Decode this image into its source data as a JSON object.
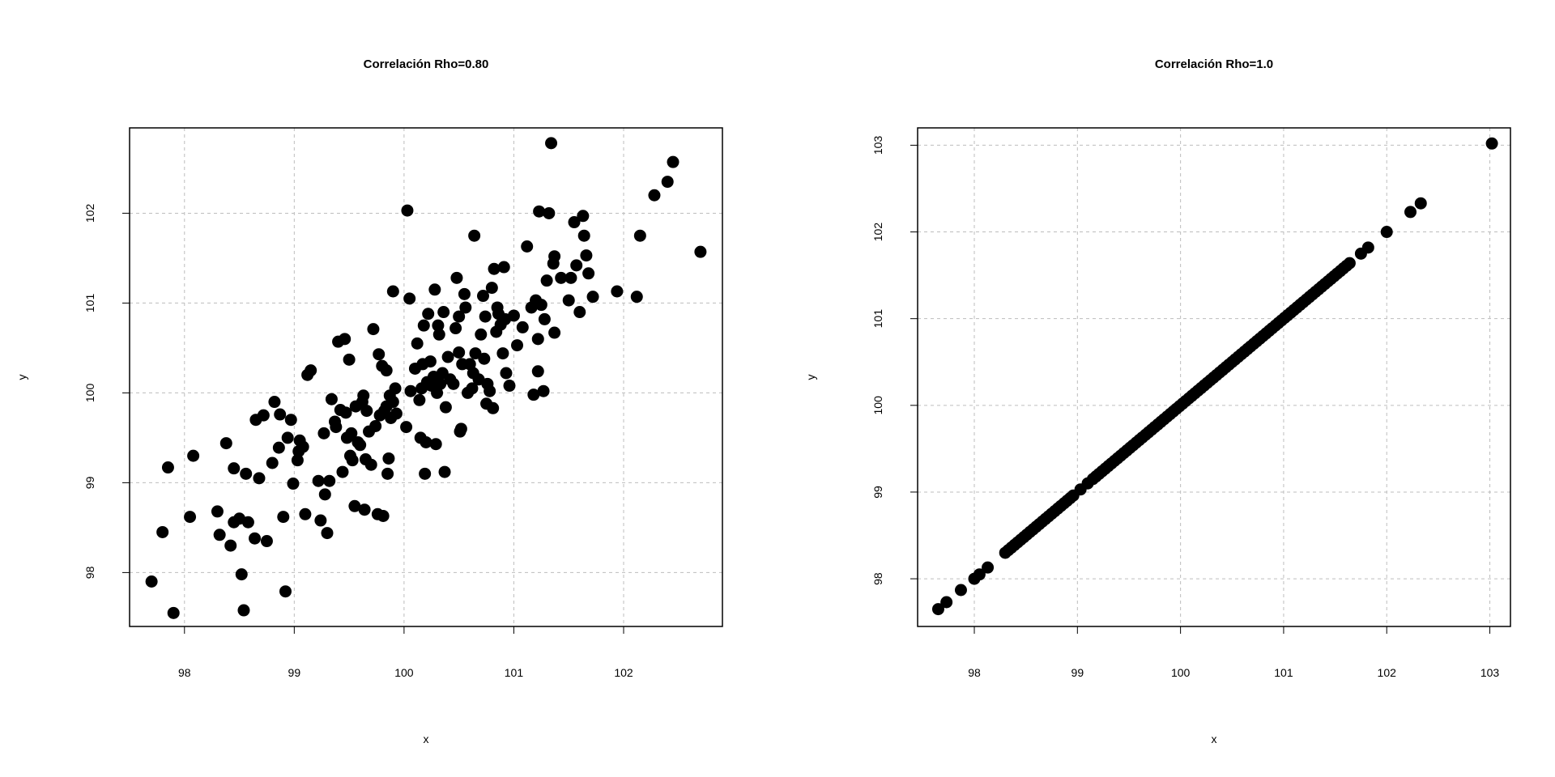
{
  "chart_data": [
    {
      "type": "scatter",
      "title": "Correlación Rho=0.80",
      "xlabel": "x",
      "ylabel": "y",
      "xlim": [
        97.5,
        102.9
      ],
      "ylim": [
        97.4,
        102.95
      ],
      "xticks": [
        98,
        99,
        100,
        101,
        102
      ],
      "yticks": [
        98,
        99,
        100,
        101,
        102
      ],
      "grid": true,
      "marker_color": "#000000",
      "points": [
        [
          97.7,
          97.9
        ],
        [
          97.8,
          98.45
        ],
        [
          97.9,
          97.55
        ],
        [
          97.85,
          99.17
        ],
        [
          98.05,
          98.62
        ],
        [
          98.08,
          99.3
        ],
        [
          98.3,
          98.68
        ],
        [
          98.32,
          98.42
        ],
        [
          98.38,
          99.44
        ],
        [
          98.42,
          98.3
        ],
        [
          98.45,
          99.16
        ],
        [
          98.45,
          98.56
        ],
        [
          98.5,
          98.6
        ],
        [
          98.52,
          97.98
        ],
        [
          98.54,
          97.58
        ],
        [
          98.56,
          99.1
        ],
        [
          98.58,
          98.56
        ],
        [
          98.64,
          98.38
        ],
        [
          98.65,
          99.7
        ],
        [
          98.68,
          99.05
        ],
        [
          98.72,
          99.75
        ],
        [
          98.75,
          98.35
        ],
        [
          98.8,
          99.22
        ],
        [
          98.82,
          99.9
        ],
        [
          98.86,
          99.39
        ],
        [
          98.87,
          99.76
        ],
        [
          98.9,
          98.62
        ],
        [
          98.92,
          97.79
        ],
        [
          98.94,
          99.5
        ],
        [
          98.97,
          99.7
        ],
        [
          98.99,
          98.99
        ],
        [
          99.03,
          99.25
        ],
        [
          99.04,
          99.35
        ],
        [
          99.05,
          99.47
        ],
        [
          99.08,
          99.4
        ],
        [
          99.1,
          98.65
        ],
        [
          99.12,
          100.2
        ],
        [
          99.15,
          100.25
        ],
        [
          99.22,
          99.02
        ],
        [
          99.24,
          98.58
        ],
        [
          99.27,
          99.55
        ],
        [
          99.28,
          98.87
        ],
        [
          99.3,
          98.44
        ],
        [
          99.32,
          99.02
        ],
        [
          99.34,
          99.93
        ],
        [
          99.37,
          99.68
        ],
        [
          99.38,
          99.62
        ],
        [
          99.4,
          100.57
        ],
        [
          99.42,
          99.81
        ],
        [
          99.44,
          99.12
        ],
        [
          99.46,
          100.6
        ],
        [
          99.47,
          99.78
        ],
        [
          99.48,
          99.5
        ],
        [
          99.5,
          100.37
        ],
        [
          99.51,
          99.3
        ],
        [
          99.52,
          99.55
        ],
        [
          99.53,
          99.25
        ],
        [
          99.55,
          98.74
        ],
        [
          99.56,
          99.85
        ],
        [
          99.58,
          99.45
        ],
        [
          99.6,
          99.42
        ],
        [
          99.62,
          99.9
        ],
        [
          99.63,
          99.97
        ],
        [
          99.64,
          98.7
        ],
        [
          99.65,
          99.26
        ],
        [
          99.66,
          99.8
        ],
        [
          99.68,
          99.57
        ],
        [
          99.7,
          99.2
        ],
        [
          99.72,
          100.71
        ],
        [
          99.74,
          99.63
        ],
        [
          99.76,
          98.65
        ],
        [
          99.77,
          100.43
        ],
        [
          99.78,
          99.75
        ],
        [
          99.8,
          100.3
        ],
        [
          99.81,
          98.63
        ],
        [
          99.82,
          99.8
        ],
        [
          99.84,
          99.85
        ],
        [
          99.84,
          100.25
        ],
        [
          99.85,
          99.1
        ],
        [
          99.86,
          99.27
        ],
        [
          99.87,
          99.97
        ],
        [
          99.88,
          99.72
        ],
        [
          99.9,
          99.9
        ],
        [
          99.9,
          101.13
        ],
        [
          99.92,
          100.05
        ],
        [
          99.93,
          99.77
        ],
        [
          100.02,
          99.62
        ],
        [
          100.03,
          102.03
        ],
        [
          100.05,
          101.05
        ],
        [
          100.06,
          100.02
        ],
        [
          100.1,
          100.27
        ],
        [
          100.12,
          100.55
        ],
        [
          100.14,
          99.92
        ],
        [
          100.15,
          99.5
        ],
        [
          100.16,
          100.05
        ],
        [
          100.17,
          100.32
        ],
        [
          100.18,
          100.75
        ],
        [
          100.19,
          99.1
        ],
        [
          100.2,
          99.45
        ],
        [
          100.21,
          100.12
        ],
        [
          100.22,
          100.88
        ],
        [
          100.24,
          100.35
        ],
        [
          100.25,
          100.08
        ],
        [
          100.27,
          100.18
        ],
        [
          100.28,
          101.15
        ],
        [
          100.29,
          99.43
        ],
        [
          100.3,
          100.0
        ],
        [
          100.31,
          100.75
        ],
        [
          100.32,
          100.65
        ],
        [
          100.33,
          100.1
        ],
        [
          100.35,
          100.22
        ],
        [
          100.36,
          100.9
        ],
        [
          100.37,
          99.12
        ],
        [
          100.38,
          99.84
        ],
        [
          100.4,
          100.4
        ],
        [
          100.42,
          100.15
        ],
        [
          100.45,
          100.1
        ],
        [
          100.47,
          100.72
        ],
        [
          100.48,
          101.28
        ],
        [
          100.5,
          100.45
        ],
        [
          100.5,
          100.85
        ],
        [
          100.51,
          99.57
        ],
        [
          100.52,
          99.6
        ],
        [
          100.53,
          100.32
        ],
        [
          100.55,
          101.1
        ],
        [
          100.56,
          100.95
        ],
        [
          100.58,
          100.0
        ],
        [
          100.6,
          100.32
        ],
        [
          100.62,
          100.05
        ],
        [
          100.63,
          100.22
        ],
        [
          100.64,
          101.75
        ],
        [
          100.65,
          100.44
        ],
        [
          100.68,
          100.15
        ],
        [
          100.7,
          100.65
        ],
        [
          100.72,
          101.08
        ],
        [
          100.73,
          100.38
        ],
        [
          100.74,
          100.85
        ],
        [
          100.75,
          99.88
        ],
        [
          100.76,
          100.1
        ],
        [
          100.78,
          100.02
        ],
        [
          100.8,
          101.17
        ],
        [
          100.81,
          99.83
        ],
        [
          100.82,
          101.38
        ],
        [
          100.84,
          100.68
        ],
        [
          100.85,
          100.95
        ],
        [
          100.86,
          100.88
        ],
        [
          100.88,
          100.76
        ],
        [
          100.9,
          100.44
        ],
        [
          100.91,
          101.4
        ],
        [
          100.92,
          100.82
        ],
        [
          100.93,
          100.22
        ],
        [
          100.96,
          100.08
        ],
        [
          101.0,
          100.86
        ],
        [
          101.03,
          100.53
        ],
        [
          101.08,
          100.73
        ],
        [
          101.12,
          101.63
        ],
        [
          101.16,
          100.95
        ],
        [
          101.18,
          99.98
        ],
        [
          101.2,
          101.03
        ],
        [
          101.22,
          100.24
        ],
        [
          101.22,
          100.6
        ],
        [
          101.23,
          102.02
        ],
        [
          101.25,
          100.98
        ],
        [
          101.27,
          100.02
        ],
        [
          101.28,
          100.82
        ],
        [
          101.3,
          101.25
        ],
        [
          101.32,
          102.0
        ],
        [
          101.34,
          102.78
        ],
        [
          101.36,
          101.44
        ],
        [
          101.37,
          100.67
        ],
        [
          101.37,
          101.52
        ],
        [
          101.43,
          101.28
        ],
        [
          101.5,
          101.03
        ],
        [
          101.52,
          101.28
        ],
        [
          101.55,
          101.9
        ],
        [
          101.57,
          101.42
        ],
        [
          101.6,
          100.9
        ],
        [
          101.63,
          101.97
        ],
        [
          101.64,
          101.75
        ],
        [
          101.66,
          101.53
        ],
        [
          101.68,
          101.33
        ],
        [
          101.72,
          101.07
        ],
        [
          101.94,
          101.13
        ],
        [
          102.12,
          101.07
        ],
        [
          102.15,
          101.75
        ],
        [
          102.28,
          102.2
        ],
        [
          102.4,
          102.35
        ],
        [
          102.45,
          102.57
        ],
        [
          102.7,
          101.57
        ]
      ]
    },
    {
      "type": "scatter",
      "title": "Correlación Rho=1.0",
      "xlabel": "x",
      "ylabel": "y",
      "xlim": [
        97.45,
        103.2
      ],
      "ylim": [
        97.45,
        103.2
      ],
      "xticks": [
        98,
        99,
        100,
        101,
        102,
        103
      ],
      "yticks": [
        98,
        99,
        100,
        101,
        102,
        103
      ],
      "grid": true,
      "marker_color": "#000000",
      "points_on_line_y_equals_x": [
        97.65,
        97.73,
        97.87,
        98.0,
        98.05,
        98.13,
        98.3,
        98.33,
        98.36,
        98.39,
        98.42,
        98.45,
        98.48,
        98.51,
        98.54,
        98.57,
        98.6,
        98.63,
        98.66,
        98.69,
        98.72,
        98.75,
        98.78,
        98.81,
        98.84,
        98.87,
        98.9,
        98.93,
        98.96,
        99.03,
        99.1,
        99.15,
        99.18,
        99.21,
        99.24,
        99.27,
        99.3,
        99.33,
        99.36,
        99.39,
        99.42,
        99.45,
        99.48,
        99.51,
        99.54,
        99.57,
        99.6,
        99.63,
        99.66,
        99.69,
        99.72,
        99.75,
        99.78,
        99.81,
        99.84,
        99.87,
        99.9,
        99.93,
        99.96,
        99.99,
        100.02,
        100.05,
        100.08,
        100.11,
        100.14,
        100.17,
        100.2,
        100.23,
        100.26,
        100.29,
        100.32,
        100.35,
        100.38,
        100.41,
        100.44,
        100.47,
        100.5,
        100.53,
        100.56,
        100.59,
        100.62,
        100.65,
        100.68,
        100.71,
        100.74,
        100.77,
        100.8,
        100.83,
        100.86,
        100.89,
        100.92,
        100.95,
        100.98,
        101.01,
        101.04,
        101.07,
        101.1,
        101.13,
        101.16,
        101.19,
        101.22,
        101.25,
        101.28,
        101.31,
        101.34,
        101.37,
        101.4,
        101.43,
        101.46,
        101.49,
        101.52,
        101.55,
        101.58,
        101.61,
        101.64,
        101.75,
        101.82,
        102.0,
        102.23,
        102.33,
        103.02
      ]
    }
  ]
}
